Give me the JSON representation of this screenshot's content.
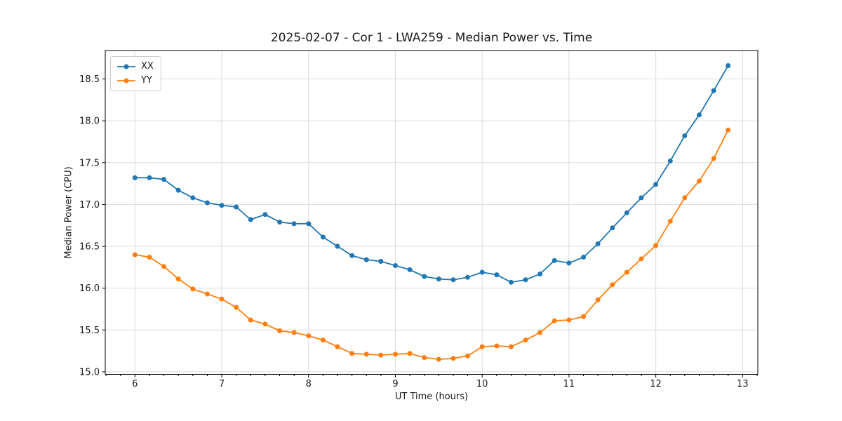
{
  "figure": {
    "background": "#ffffff",
    "grid_color": "#dcdcdc",
    "spine_color": "#000000",
    "text_color": "#1a1a1a"
  },
  "chart_data": {
    "type": "line",
    "title": "2025-02-07 - Cor 1 - LWA259 - Median Power vs. Time",
    "xlabel": "UT Time (hours)",
    "ylabel": "Median Power (CPU)",
    "xlim": [
      5.658,
      13.175
    ],
    "ylim": [
      14.97,
      18.84
    ],
    "xticks": [
      6,
      7,
      8,
      9,
      10,
      11,
      12,
      13
    ],
    "yticks": [
      15.0,
      15.5,
      16.0,
      16.5,
      17.0,
      17.5,
      18.0,
      18.5
    ],
    "x_minor_tick_step": 0.16667,
    "grid": true,
    "legend_position": "upper left",
    "marker": "circle",
    "marker_radius": 3.5,
    "line_width": 1.8,
    "x": [
      6.0,
      6.167,
      6.333,
      6.5,
      6.667,
      6.833,
      7.0,
      7.167,
      7.333,
      7.5,
      7.667,
      7.833,
      8.0,
      8.167,
      8.333,
      8.5,
      8.667,
      8.833,
      9.0,
      9.167,
      9.333,
      9.5,
      9.667,
      9.833,
      10.0,
      10.167,
      10.333,
      10.5,
      10.667,
      10.833,
      11.0,
      11.167,
      11.333,
      11.5,
      11.667,
      11.833,
      12.0,
      12.167,
      12.333,
      12.5,
      12.667,
      12.833
    ],
    "series": [
      {
        "name": "XX",
        "color": "#1f77b4",
        "values": [
          17.32,
          17.32,
          17.3,
          17.17,
          17.08,
          17.02,
          16.99,
          16.97,
          16.82,
          16.88,
          16.79,
          16.77,
          16.77,
          16.61,
          16.5,
          16.39,
          16.34,
          16.32,
          16.27,
          16.22,
          16.14,
          16.11,
          16.1,
          16.13,
          16.19,
          16.16,
          16.07,
          16.1,
          16.17,
          16.33,
          16.3,
          16.37,
          16.53,
          16.72,
          16.9,
          17.08,
          17.24,
          17.52,
          17.82,
          18.07,
          18.36,
          18.66
        ]
      },
      {
        "name": "YY",
        "color": "#ff7f0e",
        "values": [
          16.4,
          16.37,
          16.26,
          16.11,
          15.99,
          15.93,
          15.87,
          15.77,
          15.62,
          15.57,
          15.49,
          15.47,
          15.43,
          15.38,
          15.3,
          15.22,
          15.21,
          15.2,
          15.21,
          15.22,
          15.17,
          15.15,
          15.16,
          15.19,
          15.3,
          15.31,
          15.3,
          15.38,
          15.47,
          15.61,
          15.62,
          15.66,
          15.86,
          16.04,
          16.19,
          16.35,
          16.51,
          16.8,
          17.08,
          17.28,
          17.55,
          17.89
        ]
      }
    ]
  }
}
